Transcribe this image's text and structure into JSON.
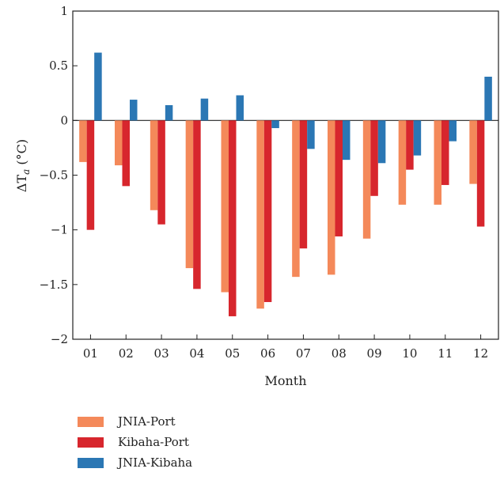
{
  "chart_data": {
    "type": "bar",
    "xlabel": "Month",
    "ylabel_symbol": "ΔT",
    "ylabel_sub": "a",
    "ylabel_unit": "(°C)",
    "ylim": [
      -2,
      1
    ],
    "yticks": [
      1,
      0.5,
      0,
      -0.5,
      -1,
      -1.5,
      -2
    ],
    "ytick_labels": [
      "1",
      "0.5",
      "0",
      "−0.5",
      "−1",
      "−1.5",
      "−2"
    ],
    "categories": [
      "01",
      "02",
      "03",
      "04",
      "05",
      "06",
      "07",
      "08",
      "09",
      "10",
      "11",
      "12"
    ],
    "series": [
      {
        "name": "JNIA-Port",
        "color": "#f4895a",
        "values": [
          -0.38,
          -0.41,
          -0.82,
          -1.35,
          -1.57,
          -1.72,
          -1.43,
          -1.41,
          -1.08,
          -0.77,
          -0.77,
          -0.58
        ]
      },
      {
        "name": "Kibaha-Port",
        "color": "#d7262d",
        "values": [
          -1.0,
          -0.6,
          -0.95,
          -1.54,
          -1.79,
          -1.66,
          -1.17,
          -1.06,
          -0.69,
          -0.45,
          -0.59,
          -0.97
        ]
      },
      {
        "name": "JNIA-Kibaha",
        "color": "#2b77b4",
        "values": [
          0.62,
          0.19,
          0.14,
          0.2,
          0.23,
          -0.07,
          -0.26,
          -0.36,
          -0.39,
          -0.32,
          -0.19,
          0.4
        ]
      }
    ],
    "legend_position": "bottom-left",
    "grid": false
  }
}
